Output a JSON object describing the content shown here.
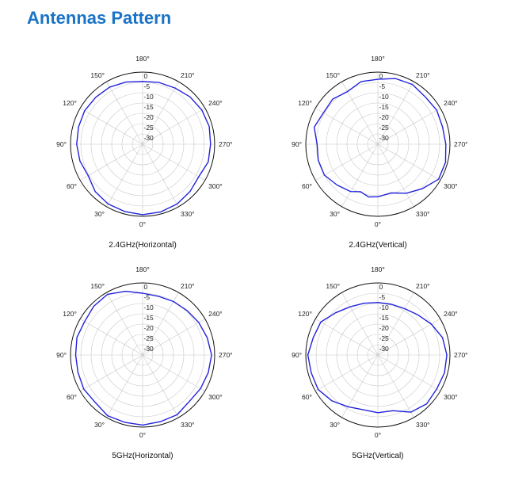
{
  "page": {
    "title": "Antennas Pattern"
  },
  "style": {
    "trace_color": "#2222dd",
    "title_color": "#1a73c6",
    "grid_color": "#c8c8c8"
  },
  "chart_data": [
    {
      "type": "polar_line",
      "caption": "2.4GHz(Horizontal)",
      "radial_ticks": [
        "0",
        "-5",
        "-10",
        "-15",
        "-20",
        "-25",
        "-30"
      ],
      "angle_ticks": [
        "0°",
        "30°",
        "60°",
        "90°",
        "120°",
        "150°",
        "180°",
        "210°",
        "240°",
        "270°",
        "300°",
        "330°"
      ],
      "rlim": [
        -35,
        0
      ],
      "angles": [
        0,
        15,
        30,
        45,
        60,
        75,
        90,
        105,
        120,
        135,
        150,
        165,
        180,
        195,
        210,
        225,
        240,
        255,
        270,
        285,
        300,
        315,
        330,
        345
      ],
      "values": [
        -0.8,
        -1.2,
        -1.5,
        -2.5,
        -4.5,
        -3.5,
        -3.0,
        -2.8,
        -2.5,
        -2.8,
        -3.0,
        -3.8,
        -4.5,
        -4.0,
        -3.5,
        -2.5,
        -1.8,
        -1.5,
        -2.0,
        -2.0,
        -3.5,
        -2.5,
        -1.5,
        -1.0
      ]
    },
    {
      "type": "polar_line",
      "caption": "2.4GHz(Vertical)",
      "radial_ticks": [
        "0",
        "-5",
        "-10",
        "-15",
        "-20",
        "-25",
        "-30"
      ],
      "angle_ticks": [
        "0°",
        "30°",
        "60°",
        "90°",
        "120°",
        "150°",
        "180°",
        "210°",
        "240°",
        "270°",
        "300°",
        "330°"
      ],
      "rlim": [
        -35,
        0
      ],
      "angles": [
        0,
        10,
        20,
        30,
        45,
        60,
        75,
        90,
        105,
        120,
        135,
        150,
        165,
        180,
        195,
        210,
        225,
        240,
        255,
        270,
        285,
        300,
        315,
        330,
        345
      ],
      "values": [
        -9.5,
        -9.0,
        -10.5,
        -8.5,
        -7.0,
        -5.0,
        -5.0,
        -5.5,
        -3.0,
        -4.5,
        -4.0,
        -5.5,
        -3.5,
        -3.5,
        -2.0,
        -1.5,
        -2.5,
        -2.0,
        -2.5,
        -2.0,
        -1.0,
        -1.0,
        -4.5,
        -7.5,
        -10.5
      ]
    },
    {
      "type": "polar_line",
      "caption": "5GHz(Horizontal)",
      "radial_ticks": [
        "0",
        "-5",
        "-10",
        "-15",
        "-20",
        "-25",
        "-30"
      ],
      "angle_ticks": [
        "0°",
        "30°",
        "60°",
        "90°",
        "120°",
        "150°",
        "180°",
        "210°",
        "240°",
        "270°",
        "300°",
        "330°"
      ],
      "rlim": [
        -35,
        0
      ],
      "angles": [
        0,
        15,
        30,
        45,
        60,
        75,
        90,
        105,
        120,
        135,
        150,
        165,
        180,
        195,
        210,
        225,
        240,
        255,
        270,
        285,
        300,
        315,
        330,
        345
      ],
      "values": [
        -1.0,
        -1.2,
        -1.0,
        -2.5,
        -2.0,
        -2.5,
        -2.5,
        -2.0,
        -2.5,
        -1.5,
        -1.0,
        -3.0,
        -5.0,
        -5.5,
        -5.0,
        -4.5,
        -3.5,
        -2.5,
        -1.5,
        -2.0,
        -2.5,
        -3.0,
        -1.5,
        -1.5
      ]
    },
    {
      "type": "polar_line",
      "caption": "5GHz(Vertical)",
      "radial_ticks": [
        "0",
        "-5",
        "-10",
        "-15",
        "-20",
        "-25",
        "-30"
      ],
      "angle_ticks": [
        "0°",
        "30°",
        "60°",
        "90°",
        "120°",
        "150°",
        "180°",
        "210°",
        "240°",
        "270°",
        "300°",
        "330°"
      ],
      "rlim": [
        -35,
        0
      ],
      "angles": [
        0,
        15,
        30,
        45,
        60,
        75,
        90,
        105,
        120,
        135,
        150,
        165,
        180,
        195,
        210,
        225,
        240,
        255,
        270,
        285,
        300,
        315,
        330,
        345
      ],
      "values": [
        -7.0,
        -7.5,
        -6.0,
        -3.5,
        -1.5,
        -1.5,
        -1.0,
        -2.5,
        -3.0,
        -6.0,
        -8.0,
        -9.0,
        -9.5,
        -9.5,
        -9.0,
        -7.5,
        -5.0,
        -2.5,
        -1.5,
        -1.5,
        -2.0,
        -1.5,
        -3.0,
        -7.0
      ]
    }
  ]
}
